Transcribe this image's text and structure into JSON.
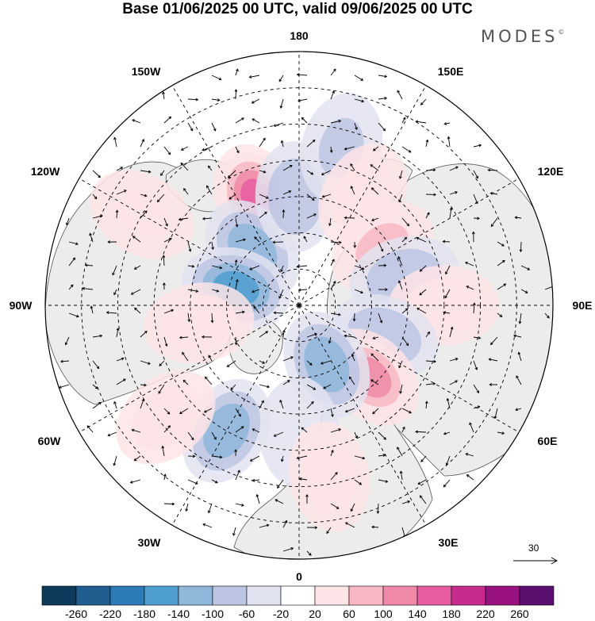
{
  "title": "Base 01/06/2025 00 UTC, valid 09/06/2025 00 UTC",
  "brand": "MODES",
  "brand_mark": "©",
  "longitude_labels": {
    "top": "180",
    "bottom": "0",
    "left": "90W",
    "right": "90E",
    "upper_left_1": "150W",
    "upper_left_2": "120W",
    "upper_right_1": "150E",
    "upper_right_2": "120E",
    "lower_left_1": "60W",
    "lower_left_2": "30W",
    "lower_right_1": "60E",
    "lower_right_2": "30E"
  },
  "reference_vector": {
    "label": "30"
  },
  "colorbar": {
    "ticks": [
      "-260",
      "-220",
      "-180",
      "-140",
      "-100",
      "-60",
      "-20",
      "20",
      "60",
      "100",
      "140",
      "180",
      "220",
      "260"
    ],
    "colors": [
      "#0d3a5a",
      "#1f5e8e",
      "#2d7cb8",
      "#4f9ed0",
      "#8fb7da",
      "#bcc6e3",
      "#e2e3f0",
      "#ffffff",
      "#fde4e6",
      "#f8b8c3",
      "#f08aa8",
      "#e75d9f",
      "#c82b8e",
      "#98117e",
      "#5a0e6e"
    ]
  },
  "anomalies": [
    {
      "lon": -158,
      "lat": 58,
      "value": 180
    },
    {
      "lon": -140,
      "lat": 70,
      "value": -100
    },
    {
      "lon": -105,
      "lat": 72,
      "value": -140
    },
    {
      "lon": -178,
      "lat": 60,
      "value": -60
    },
    {
      "lon": 165,
      "lat": 45,
      "value": -40
    },
    {
      "lon": 150,
      "lat": 55,
      "value": 60
    },
    {
      "lon": 125,
      "lat": 62,
      "value": 100
    },
    {
      "lon": 105,
      "lat": 60,
      "value": -60
    },
    {
      "lon": 90,
      "lat": 50,
      "value": 60
    },
    {
      "lon": 70,
      "lat": 65,
      "value": -60
    },
    {
      "lon": 45,
      "lat": 62,
      "value": 140
    },
    {
      "lon": 25,
      "lat": 72,
      "value": -100
    },
    {
      "lon": 0,
      "lat": 55,
      "value": -20
    },
    {
      "lon": 10,
      "lat": 42,
      "value": 60
    },
    {
      "lon": -30,
      "lat": 50,
      "value": -100
    },
    {
      "lon": -50,
      "lat": 42,
      "value": 60
    },
    {
      "lon": -80,
      "lat": 62,
      "value": 60
    },
    {
      "lon": -120,
      "lat": 40,
      "value": 40
    }
  ]
}
